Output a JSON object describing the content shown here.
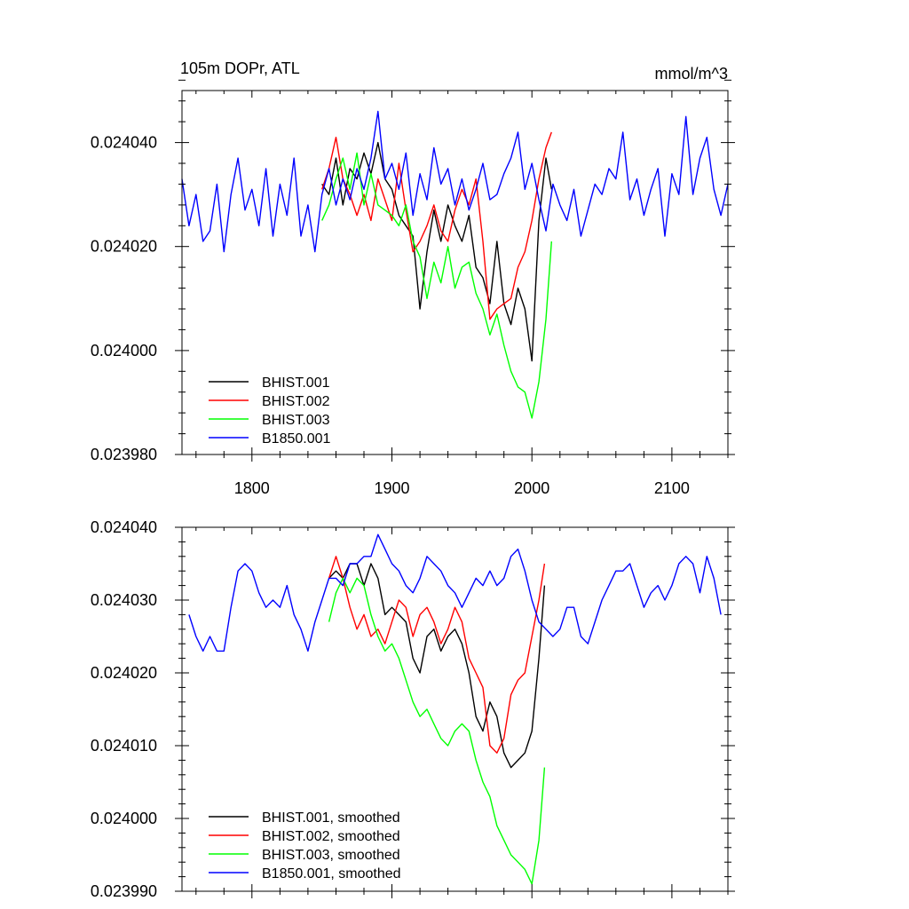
{
  "colors": {
    "BHIST_001": "#000000",
    "BHIST_002": "#ff0000",
    "BHIST_003": "#00ff00",
    "B1850_001": "#0000ff"
  },
  "chart_data": [
    {
      "type": "line",
      "title": "105m DOPr, ATL",
      "units": "mmol/m^3",
      "xlabel": "",
      "ylabel": "",
      "xlim": [
        1750,
        2140
      ],
      "ylim": [
        0.02398,
        0.02405
      ],
      "x_ticks": [
        1800,
        1900,
        2000,
        2100
      ],
      "x_tick_labels": [
        "1800",
        "1900",
        "2000",
        "2100"
      ],
      "y_ticks": [
        0.02398,
        0.024,
        0.02402,
        0.02404
      ],
      "y_tick_labels": [
        "0.023980",
        "0.024000",
        "0.024020",
        "0.024040"
      ],
      "grid": false,
      "legend_position": "bottom-left",
      "series": [
        {
          "name": "BHIST.001",
          "color_key": "BHIST_001",
          "x": [
            1850,
            1855,
            1860,
            1865,
            1870,
            1875,
            1880,
            1885,
            1890,
            1895,
            1900,
            1905,
            1910,
            1915,
            1920,
            1925,
            1930,
            1935,
            1940,
            1945,
            1950,
            1955,
            1960,
            1965,
            1970,
            1975,
            1980,
            1985,
            1990,
            1995,
            2000,
            2005,
            2010,
            2014
          ],
          "y": [
            0.024032,
            0.02403,
            0.024037,
            0.024028,
            0.024035,
            0.024033,
            0.024038,
            0.024034,
            0.02404,
            0.024033,
            0.024031,
            0.024026,
            0.024024,
            0.024022,
            0.024008,
            0.024019,
            0.024027,
            0.024021,
            0.024028,
            0.024024,
            0.024021,
            0.024026,
            0.024016,
            0.024014,
            0.024009,
            0.024021,
            0.024009,
            0.024005,
            0.024012,
            0.024008,
            0.023998,
            0.024025,
            0.024037,
            0.024031
          ]
        },
        {
          "name": "BHIST.002",
          "color_key": "BHIST_002",
          "x": [
            1850,
            1855,
            1860,
            1865,
            1870,
            1875,
            1880,
            1885,
            1890,
            1895,
            1900,
            1905,
            1910,
            1915,
            1920,
            1925,
            1930,
            1935,
            1940,
            1945,
            1950,
            1955,
            1960,
            1965,
            1970,
            1975,
            1980,
            1985,
            1990,
            1995,
            2000,
            2005,
            2010,
            2014
          ],
          "y": [
            0.024031,
            0.024035,
            0.024041,
            0.024033,
            0.02403,
            0.024026,
            0.02403,
            0.024025,
            0.024033,
            0.024029,
            0.024025,
            0.024036,
            0.024027,
            0.024019,
            0.024021,
            0.024024,
            0.024028,
            0.024023,
            0.024021,
            0.024027,
            0.024031,
            0.024028,
            0.024033,
            0.024021,
            0.024006,
            0.024008,
            0.024009,
            0.02401,
            0.024016,
            0.024019,
            0.024025,
            0.024033,
            0.024039,
            0.024042
          ]
        },
        {
          "name": "BHIST.003",
          "color_key": "BHIST_003",
          "x": [
            1850,
            1855,
            1860,
            1865,
            1870,
            1875,
            1880,
            1885,
            1890,
            1895,
            1900,
            1905,
            1910,
            1915,
            1920,
            1925,
            1930,
            1935,
            1940,
            1945,
            1950,
            1955,
            1960,
            1965,
            1970,
            1975,
            1980,
            1985,
            1990,
            1995,
            2000,
            2005,
            2010,
            2014
          ],
          "y": [
            0.024025,
            0.024028,
            0.024033,
            0.024037,
            0.024031,
            0.024038,
            0.024028,
            0.024034,
            0.024028,
            0.024027,
            0.024026,
            0.024024,
            0.024028,
            0.024021,
            0.024018,
            0.02401,
            0.024017,
            0.024013,
            0.02402,
            0.024012,
            0.024016,
            0.024017,
            0.024011,
            0.024008,
            0.024003,
            0.024007,
            0.024001,
            0.023996,
            0.023993,
            0.023992,
            0.023987,
            0.023994,
            0.024006,
            0.024021
          ]
        },
        {
          "name": "B1850.001",
          "color_key": "B1850_001",
          "x": [
            1750,
            1755,
            1760,
            1765,
            1770,
            1775,
            1780,
            1785,
            1790,
            1795,
            1800,
            1805,
            1810,
            1815,
            1820,
            1825,
            1830,
            1835,
            1840,
            1845,
            1850,
            1855,
            1860,
            1865,
            1870,
            1875,
            1880,
            1885,
            1890,
            1895,
            1900,
            1905,
            1910,
            1915,
            1920,
            1925,
            1930,
            1935,
            1940,
            1945,
            1950,
            1955,
            1960,
            1965,
            1970,
            1975,
            1980,
            1985,
            1990,
            1995,
            2000,
            2005,
            2010,
            2015,
            2020,
            2025,
            2030,
            2035,
            2040,
            2045,
            2050,
            2055,
            2060,
            2065,
            2070,
            2075,
            2080,
            2085,
            2090,
            2095,
            2100,
            2105,
            2110,
            2115,
            2120,
            2125,
            2130,
            2135,
            2140
          ],
          "y": [
            0.024033,
            0.024024,
            0.02403,
            0.024021,
            0.024023,
            0.024032,
            0.024019,
            0.02403,
            0.024037,
            0.024027,
            0.024031,
            0.024024,
            0.024035,
            0.024022,
            0.024032,
            0.024026,
            0.024037,
            0.024022,
            0.024028,
            0.024019,
            0.02403,
            0.024035,
            0.024028,
            0.024033,
            0.024029,
            0.024035,
            0.024031,
            0.024037,
            0.024046,
            0.024033,
            0.024036,
            0.024031,
            0.024038,
            0.024026,
            0.024034,
            0.024029,
            0.024039,
            0.024032,
            0.024035,
            0.024028,
            0.024033,
            0.024027,
            0.024031,
            0.024036,
            0.024029,
            0.02403,
            0.024034,
            0.024037,
            0.024042,
            0.024031,
            0.024036,
            0.024029,
            0.024023,
            0.024032,
            0.024028,
            0.024025,
            0.024031,
            0.024022,
            0.024027,
            0.024032,
            0.02403,
            0.024035,
            0.024033,
            0.024042,
            0.024029,
            0.024033,
            0.024026,
            0.024031,
            0.024035,
            0.024022,
            0.024034,
            0.02403,
            0.024045,
            0.02403,
            0.024037,
            0.024041,
            0.024031,
            0.024026,
            0.024032
          ]
        }
      ]
    },
    {
      "type": "line",
      "title": "",
      "xlabel": "",
      "ylabel": "",
      "xlim": [
        1750,
        2140
      ],
      "ylim": [
        0.02399,
        0.02404
      ],
      "x_ticks": [
        1800,
        1900,
        2000,
        2100
      ],
      "y_ticks": [
        0.02399,
        0.024,
        0.02401,
        0.02402,
        0.02403,
        0.02404
      ],
      "y_tick_labels": [
        "0.023990",
        "0.024000",
        "0.024010",
        "0.024020",
        "0.024030",
        "0.024040"
      ],
      "grid": false,
      "legend_position": "bottom-left",
      "series": [
        {
          "name": "BHIST.001, smoothed",
          "color_key": "BHIST_001",
          "x": [
            1855,
            1860,
            1865,
            1870,
            1875,
            1880,
            1885,
            1890,
            1895,
            1900,
            1905,
            1910,
            1915,
            1920,
            1925,
            1930,
            1935,
            1940,
            1945,
            1950,
            1955,
            1960,
            1965,
            1970,
            1975,
            1980,
            1985,
            1990,
            1995,
            2000,
            2005,
            2009
          ],
          "y": [
            0.024033,
            0.024034,
            0.024033,
            0.024035,
            0.024035,
            0.024032,
            0.024035,
            0.024033,
            0.024028,
            0.024029,
            0.024028,
            0.024027,
            0.024022,
            0.02402,
            0.024025,
            0.024026,
            0.024023,
            0.024025,
            0.024026,
            0.024024,
            0.02402,
            0.024014,
            0.024012,
            0.024016,
            0.024014,
            0.024009,
            0.024007,
            0.024008,
            0.024009,
            0.024012,
            0.024022,
            0.024032
          ]
        },
        {
          "name": "BHIST.002, smoothed",
          "color_key": "BHIST_002",
          "x": [
            1855,
            1860,
            1865,
            1870,
            1875,
            1880,
            1885,
            1890,
            1895,
            1900,
            1905,
            1910,
            1915,
            1920,
            1925,
            1930,
            1935,
            1940,
            1945,
            1950,
            1955,
            1960,
            1965,
            1970,
            1975,
            1980,
            1985,
            1990,
            1995,
            2000,
            2005,
            2009
          ],
          "y": [
            0.024033,
            0.024036,
            0.024033,
            0.024029,
            0.024026,
            0.024028,
            0.024025,
            0.024026,
            0.024024,
            0.024027,
            0.02403,
            0.024029,
            0.024025,
            0.024028,
            0.024029,
            0.024027,
            0.024024,
            0.024026,
            0.024029,
            0.024027,
            0.024022,
            0.02402,
            0.024018,
            0.02401,
            0.024009,
            0.024011,
            0.024017,
            0.024019,
            0.02402,
            0.024025,
            0.02403,
            0.024035
          ]
        },
        {
          "name": "BHIST.003, smoothed",
          "color_key": "BHIST_003",
          "x": [
            1855,
            1860,
            1865,
            1870,
            1875,
            1880,
            1885,
            1890,
            1895,
            1900,
            1905,
            1910,
            1915,
            1920,
            1925,
            1930,
            1935,
            1940,
            1945,
            1950,
            1955,
            1960,
            1965,
            1970,
            1975,
            1980,
            1985,
            1990,
            1995,
            2000,
            2005,
            2009
          ],
          "y": [
            0.024027,
            0.024031,
            0.024033,
            0.024031,
            0.024033,
            0.024032,
            0.024028,
            0.024025,
            0.024023,
            0.024024,
            0.024022,
            0.024019,
            0.024016,
            0.024014,
            0.024015,
            0.024013,
            0.024011,
            0.02401,
            0.024012,
            0.024013,
            0.024012,
            0.024008,
            0.024005,
            0.024003,
            0.023999,
            0.023997,
            0.023995,
            0.023994,
            0.023993,
            0.023991,
            0.023997,
            0.024007
          ]
        },
        {
          "name": "B1850.001, smoothed",
          "color_key": "B1850_001",
          "x": [
            1755,
            1760,
            1765,
            1770,
            1775,
            1780,
            1785,
            1790,
            1795,
            1800,
            1805,
            1810,
            1815,
            1820,
            1825,
            1830,
            1835,
            1840,
            1845,
            1850,
            1855,
            1860,
            1865,
            1870,
            1875,
            1880,
            1885,
            1890,
            1895,
            1900,
            1905,
            1910,
            1915,
            1920,
            1925,
            1930,
            1935,
            1940,
            1945,
            1950,
            1955,
            1960,
            1965,
            1970,
            1975,
            1980,
            1985,
            1990,
            1995,
            2000,
            2005,
            2010,
            2015,
            2020,
            2025,
            2030,
            2035,
            2040,
            2045,
            2050,
            2055,
            2060,
            2065,
            2070,
            2075,
            2080,
            2085,
            2090,
            2095,
            2100,
            2105,
            2110,
            2115,
            2120,
            2125,
            2130,
            2135
          ],
          "y": [
            0.024028,
            0.024025,
            0.024023,
            0.024025,
            0.024023,
            0.024023,
            0.024029,
            0.024034,
            0.024035,
            0.024034,
            0.024031,
            0.024029,
            0.02403,
            0.024029,
            0.024032,
            0.024028,
            0.024026,
            0.024023,
            0.024027,
            0.02403,
            0.024033,
            0.024033,
            0.024032,
            0.024035,
            0.024035,
            0.024036,
            0.024036,
            0.024039,
            0.024037,
            0.024035,
            0.024034,
            0.024032,
            0.024031,
            0.024033,
            0.024036,
            0.024035,
            0.024034,
            0.024032,
            0.024031,
            0.024029,
            0.024031,
            0.024033,
            0.024032,
            0.024034,
            0.024032,
            0.024033,
            0.024036,
            0.024037,
            0.024034,
            0.02403,
            0.024027,
            0.024026,
            0.024025,
            0.024026,
            0.024029,
            0.024029,
            0.024025,
            0.024024,
            0.024027,
            0.02403,
            0.024032,
            0.024034,
            0.024034,
            0.024035,
            0.024032,
            0.024029,
            0.024031,
            0.024032,
            0.02403,
            0.024032,
            0.024035,
            0.024036,
            0.024035,
            0.024031,
            0.024036,
            0.024033,
            0.024028
          ]
        }
      ]
    }
  ]
}
